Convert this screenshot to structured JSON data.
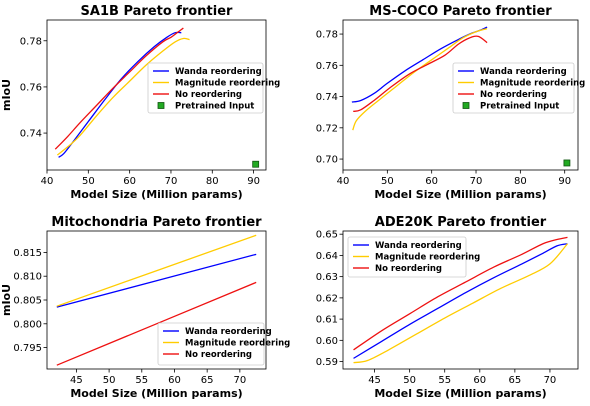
{
  "chart_data": [
    {
      "type": "line",
      "title": "SA1B Pareto frontier",
      "xlabel": "Model Size (Million params)",
      "ylabel": "mIoU",
      "xlim": [
        40,
        93
      ],
      "ylim": [
        0.724,
        0.789
      ],
      "xticks": [
        40,
        50,
        60,
        70,
        80,
        90
      ],
      "yticks": [
        0.74,
        0.76,
        0.78
      ],
      "ytick_labels": [
        "0.74",
        "0.76",
        "0.78"
      ],
      "legend_position": "right",
      "series": [
        {
          "name": "Wanda reordering",
          "color": "#0000ff",
          "points": [
            [
              42.8,
              0.7295
            ],
            [
              44,
              0.731
            ],
            [
              46,
              0.7355
            ],
            [
              50,
              0.745
            ],
            [
              54,
              0.7545
            ],
            [
              58,
              0.7635
            ],
            [
              62,
              0.771
            ],
            [
              66,
              0.7775
            ],
            [
              69,
              0.7815
            ],
            [
              71,
              0.7835
            ],
            [
              72.5,
              0.7835
            ]
          ]
        },
        {
          "name": "Magnitude reordering",
          "color": "#ffcc00",
          "points": [
            [
              42.5,
              0.7305
            ],
            [
              45,
              0.734
            ],
            [
              48,
              0.739
            ],
            [
              52,
              0.7475
            ],
            [
              56,
              0.7555
            ],
            [
              60,
              0.7625
            ],
            [
              64,
              0.7695
            ],
            [
              68,
              0.7755
            ],
            [
              71,
              0.7795
            ],
            [
              73,
              0.781
            ],
            [
              74.5,
              0.7805
            ]
          ]
        },
        {
          "name": "No reordering",
          "color": "#ee1111",
          "points": [
            [
              42,
              0.733
            ],
            [
              45,
              0.7385
            ],
            [
              48,
              0.7445
            ],
            [
              52,
              0.752
            ],
            [
              56,
              0.7595
            ],
            [
              60,
              0.7665
            ],
            [
              64,
              0.7735
            ],
            [
              68,
              0.7795
            ],
            [
              70,
              0.7815
            ],
            [
              71.5,
              0.7835
            ],
            [
              73,
              0.7855
            ]
          ]
        },
        {
          "name": "Pretrained Input",
          "color": "#22aa22",
          "marker": "square",
          "points": [
            [
              90.5,
              0.7265
            ]
          ]
        }
      ]
    },
    {
      "type": "line",
      "title": "MS-COCO Pareto frontier",
      "xlabel": "Model Size (Million params)",
      "ylabel": "",
      "xlim": [
        40,
        93
      ],
      "ylim": [
        0.693,
        0.789
      ],
      "xticks": [
        40,
        50,
        60,
        70,
        80,
        90
      ],
      "yticks": [
        0.7,
        0.72,
        0.74,
        0.76,
        0.78
      ],
      "ytick_labels": [
        "0.70",
        "0.72",
        "0.74",
        "0.76",
        "0.78"
      ],
      "legend_position": "right",
      "series": [
        {
          "name": "Wanda reordering",
          "color": "#0000ff",
          "points": [
            [
              42,
              0.7365
            ],
            [
              44,
              0.7375
            ],
            [
              47,
              0.742
            ],
            [
              50,
              0.7485
            ],
            [
              54,
              0.7565
            ],
            [
              58,
              0.7635
            ],
            [
              62,
              0.7705
            ],
            [
              66,
              0.7765
            ],
            [
              69,
              0.7805
            ],
            [
              71,
              0.7825
            ],
            [
              72.5,
              0.7845
            ]
          ]
        },
        {
          "name": "Magnitude reordering",
          "color": "#ffcc00",
          "points": [
            [
              42.2,
              0.7185
            ],
            [
              43,
              0.7245
            ],
            [
              45,
              0.7305
            ],
            [
              48,
              0.7375
            ],
            [
              52,
              0.7465
            ],
            [
              56,
              0.7555
            ],
            [
              60,
              0.7635
            ],
            [
              64,
              0.7715
            ],
            [
              67,
              0.7775
            ],
            [
              70,
              0.7815
            ],
            [
              72.5,
              0.7835
            ]
          ]
        },
        {
          "name": "No reordering",
          "color": "#ee1111",
          "points": [
            [
              42.3,
              0.7305
            ],
            [
              44,
              0.7315
            ],
            [
              47,
              0.7375
            ],
            [
              51,
              0.7465
            ],
            [
              55,
              0.7545
            ],
            [
              59,
              0.7605
            ],
            [
              63,
              0.7665
            ],
            [
              66,
              0.7735
            ],
            [
              68.5,
              0.7775
            ],
            [
              70.5,
              0.7785
            ],
            [
              72.5,
              0.7745
            ]
          ]
        },
        {
          "name": "Pretrained Input",
          "color": "#22aa22",
          "marker": "square",
          "points": [
            [
              90.5,
              0.6975
            ]
          ]
        }
      ]
    },
    {
      "type": "line",
      "title": "Mitochondria Pareto frontier",
      "xlabel": "Model Size (Million params)",
      "ylabel": "mIoU",
      "xlim": [
        40.5,
        74
      ],
      "ylim": [
        0.7905,
        0.8195
      ],
      "xticks": [
        45,
        50,
        55,
        60,
        65,
        70
      ],
      "yticks": [
        0.795,
        0.8,
        0.805,
        0.81,
        0.815
      ],
      "ytick_labels": [
        "0.795",
        "0.800",
        "0.805",
        "0.810",
        "0.815"
      ],
      "legend_position": "lower right",
      "series": [
        {
          "name": "Wanda reordering",
          "color": "#0000ff",
          "points": [
            [
              42,
              0.8035
            ],
            [
              72.5,
              0.8146
            ]
          ]
        },
        {
          "name": "Magnitude reordering",
          "color": "#ffcc00",
          "points": [
            [
              42,
              0.8037
            ],
            [
              72.5,
              0.8186
            ]
          ]
        },
        {
          "name": "No reordering",
          "color": "#ee1111",
          "points": [
            [
              42,
              0.7913
            ],
            [
              72.5,
              0.8087
            ]
          ]
        }
      ]
    },
    {
      "type": "line",
      "title": "ADE20K Pareto frontier",
      "xlabel": "Model Size (Million params)",
      "ylabel": "",
      "xlim": [
        40.5,
        74
      ],
      "ylim": [
        0.5865,
        0.6515
      ],
      "xticks": [
        45,
        50,
        55,
        60,
        65,
        70
      ],
      "yticks": [
        0.59,
        0.6,
        0.61,
        0.62,
        0.63,
        0.64,
        0.65
      ],
      "ytick_labels": [
        "0.59",
        "0.60",
        "0.61",
        "0.62",
        "0.63",
        "0.64",
        "0.65"
      ],
      "legend_position": "upper left",
      "series": [
        {
          "name": "Wanda reordering",
          "color": "#0000ff",
          "points": [
            [
              42,
              0.5915
            ],
            [
              46,
              0.5995
            ],
            [
              50,
              0.6075
            ],
            [
              54,
              0.615
            ],
            [
              58,
              0.6225
            ],
            [
              62,
              0.6295
            ],
            [
              66,
              0.636
            ],
            [
              69,
              0.641
            ],
            [
              71,
              0.6445
            ],
            [
              72.5,
              0.6455
            ]
          ]
        },
        {
          "name": "Magnitude reordering",
          "color": "#ffcc00",
          "points": [
            [
              42,
              0.5895
            ],
            [
              44,
              0.5905
            ],
            [
              47,
              0.5955
            ],
            [
              51,
              0.603
            ],
            [
              55,
              0.6105
            ],
            [
              59,
              0.6175
            ],
            [
              63,
              0.6245
            ],
            [
              67,
              0.6305
            ],
            [
              70,
              0.636
            ],
            [
              72.5,
              0.6455
            ]
          ]
        },
        {
          "name": "No reordering",
          "color": "#ee1111",
          "points": [
            [
              42,
              0.5955
            ],
            [
              46,
              0.6045
            ],
            [
              50,
              0.6125
            ],
            [
              54,
              0.6205
            ],
            [
              58,
              0.6275
            ],
            [
              62,
              0.6345
            ],
            [
              66,
              0.6405
            ],
            [
              69,
              0.6455
            ],
            [
              71,
              0.6475
            ],
            [
              72.5,
              0.6485
            ]
          ]
        }
      ]
    }
  ]
}
